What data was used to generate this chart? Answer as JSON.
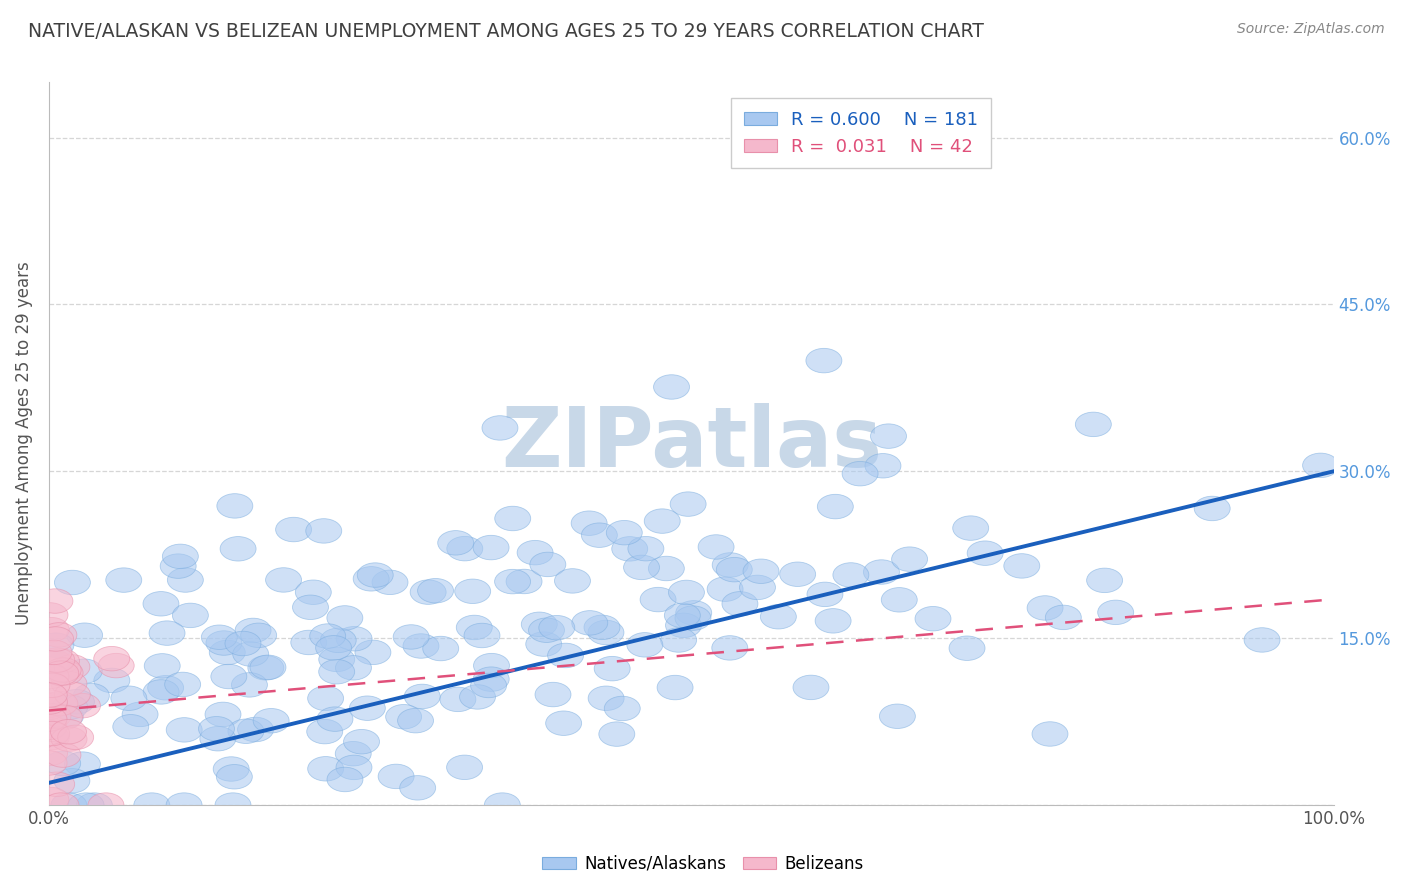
{
  "title": "NATIVE/ALASKAN VS BELIZEAN UNEMPLOYMENT AMONG AGES 25 TO 29 YEARS CORRELATION CHART",
  "source": "Source: ZipAtlas.com",
  "ylabel": "Unemployment Among Ages 25 to 29 years",
  "xlim": [
    0.0,
    1.0
  ],
  "ylim": [
    0.0,
    0.65
  ],
  "xticks": [
    0.0,
    1.0
  ],
  "xticklabels": [
    "0.0%",
    "100.0%"
  ],
  "yticks_right": [
    0.15,
    0.3,
    0.45,
    0.6
  ],
  "yticklabels_right": [
    "15.0%",
    "30.0%",
    "45.0%",
    "60.0%"
  ],
  "native_R": 0.6,
  "native_N": 181,
  "belizean_R": 0.031,
  "belizean_N": 42,
  "native_color": "#a8c8f0",
  "native_edge_color": "#7aacde",
  "native_line_color": "#1a5fbd",
  "belizean_color": "#f5b8cc",
  "belizean_edge_color": "#e890aa",
  "belizean_line_color": "#e0507a",
  "watermark": "ZIPatlas",
  "watermark_color": "#c8d8e8",
  "background_color": "#ffffff",
  "grid_color": "#cccccc",
  "title_color": "#404040",
  "source_color": "#888888",
  "ylabel_color": "#555555",
  "right_tick_color": "#5599dd",
  "seed": 42,
  "native_slope": 0.28,
  "native_intercept": 0.02,
  "belizean_slope": 0.1,
  "belizean_intercept": 0.085
}
